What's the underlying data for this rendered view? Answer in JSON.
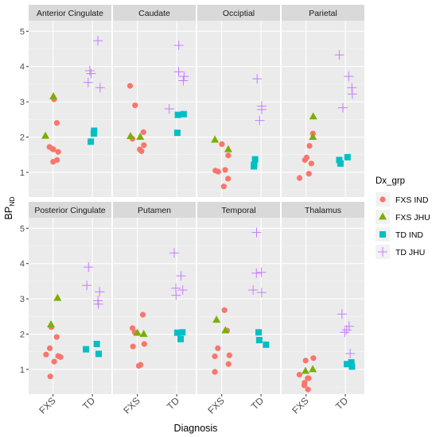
{
  "chart_data": {
    "type": "scatter",
    "xlabel": "Diagnosis",
    "ylabel": "BP",
    "ylabel_sub": "ND",
    "categories": [
      "FXS",
      "TD"
    ],
    "ylim": [
      0.3,
      5.3
    ],
    "yticks": [
      "1",
      "2",
      "3",
      "4",
      "5"
    ],
    "grid": true,
    "legend_title": "Dx_grp",
    "legend_position": "right",
    "series_style": [
      {
        "name": "FXS IND",
        "color": "#F8766D",
        "shape": "circle"
      },
      {
        "name": "FXS JHU",
        "color": "#7CAE00",
        "shape": "triangle"
      },
      {
        "name": "TD IND",
        "color": "#00BFC4",
        "shape": "square"
      },
      {
        "name": "TD JHU",
        "color": "#C77CFF",
        "shape": "plus"
      }
    ],
    "panels": [
      {
        "title": "Anterior Cingulate",
        "series": [
          {
            "name": "FXS IND",
            "x": [
              "FXS",
              "FXS",
              "FXS",
              "FXS",
              "FXS",
              "FXS",
              "FXS",
              "FXS"
            ],
            "values": [
              2.4,
              3.07,
              1.67,
              1.72,
              1.58,
              1.35,
              1.3,
              1.65
            ]
          },
          {
            "name": "FXS JHU",
            "x": [
              "FXS",
              "FXS"
            ],
            "values": [
              3.15,
              2.03
            ]
          },
          {
            "name": "TD IND",
            "x": [
              "TD",
              "TD",
              "TD"
            ],
            "values": [
              2.1,
              2.18,
              1.87
            ]
          },
          {
            "name": "TD JHU",
            "x": [
              "TD",
              "TD",
              "TD",
              "TD",
              "TD"
            ],
            "values": [
              4.73,
              3.88,
              3.8,
              3.55,
              3.4
            ]
          }
        ]
      },
      {
        "title": "Caudate",
        "series": [
          {
            "name": "FXS IND",
            "x": [
              "FXS",
              "FXS",
              "FXS",
              "FXS",
              "FXS",
              "FXS",
              "FXS"
            ],
            "values": [
              3.45,
              2.9,
              2.14,
              1.95,
              1.77,
              1.65,
              1.6
            ]
          },
          {
            "name": "FXS JHU",
            "x": [
              "FXS",
              "FXS"
            ],
            "values": [
              2.02,
              2.0
            ]
          },
          {
            "name": "TD IND",
            "x": [
              "TD",
              "TD",
              "TD"
            ],
            "values": [
              2.65,
              2.63,
              2.12
            ]
          },
          {
            "name": "TD JHU",
            "x": [
              "TD",
              "TD",
              "TD",
              "TD",
              "TD"
            ],
            "values": [
              4.6,
              3.85,
              3.72,
              3.6,
              2.8
            ]
          }
        ]
      },
      {
        "title": "Occiptial",
        "series": [
          {
            "name": "FXS IND",
            "x": [
              "FXS",
              "FXS",
              "FXS",
              "FXS",
              "FXS",
              "FXS",
              "FXS"
            ],
            "values": [
              1.8,
              1.48,
              1.07,
              1.05,
              1.02,
              0.82,
              0.6
            ]
          },
          {
            "name": "FXS JHU",
            "x": [
              "FXS",
              "FXS"
            ],
            "values": [
              1.65,
              1.92
            ]
          },
          {
            "name": "TD IND",
            "x": [
              "TD",
              "TD",
              "TD"
            ],
            "values": [
              1.37,
              1.22,
              1.17
            ]
          },
          {
            "name": "TD JHU",
            "x": [
              "TD",
              "TD",
              "TD",
              "TD"
            ],
            "values": [
              3.65,
              2.88,
              2.78,
              2.47
            ]
          }
        ]
      },
      {
        "title": "Parietal",
        "series": [
          {
            "name": "FXS IND",
            "x": [
              "FXS",
              "FXS",
              "FXS",
              "FXS",
              "FXS",
              "FXS",
              "FXS"
            ],
            "values": [
              2.1,
              1.75,
              1.42,
              1.35,
              1.25,
              0.96,
              0.84
            ]
          },
          {
            "name": "FXS JHU",
            "x": [
              "FXS",
              "FXS"
            ],
            "values": [
              2.58,
              2.0
            ]
          },
          {
            "name": "TD IND",
            "x": [
              "TD",
              "TD",
              "TD"
            ],
            "values": [
              1.43,
              1.35,
              1.25
            ]
          },
          {
            "name": "TD JHU",
            "x": [
              "TD",
              "TD",
              "TD",
              "TD",
              "TD"
            ],
            "values": [
              4.33,
              3.72,
              3.4,
              3.22,
              2.83
            ]
          }
        ]
      },
      {
        "title": "Posterior Cingulate",
        "series": [
          {
            "name": "FXS IND",
            "x": [
              "FXS",
              "FXS",
              "FXS",
              "FXS",
              "FXS",
              "FXS",
              "FXS",
              "FXS"
            ],
            "values": [
              2.2,
              1.92,
              1.6,
              1.42,
              1.38,
              1.35,
              1.22,
              0.8
            ]
          },
          {
            "name": "FXS JHU",
            "x": [
              "FXS",
              "FXS"
            ],
            "values": [
              3.02,
              2.27
            ]
          },
          {
            "name": "TD IND",
            "x": [
              "TD",
              "TD",
              "TD"
            ],
            "values": [
              1.72,
              1.57,
              1.44
            ]
          },
          {
            "name": "TD JHU",
            "x": [
              "TD",
              "TD",
              "TD",
              "TD",
              "TD"
            ],
            "values": [
              3.9,
              3.38,
              3.2,
              2.95,
              2.85
            ]
          }
        ]
      },
      {
        "title": "Putamen",
        "series": [
          {
            "name": "FXS IND",
            "x": [
              "FXS",
              "FXS",
              "FXS",
              "FXS",
              "FXS",
              "FXS",
              "FXS"
            ],
            "values": [
              2.55,
              2.17,
              2.05,
              1.72,
              1.65,
              1.13,
              1.1
            ]
          },
          {
            "name": "FXS JHU",
            "x": [
              "FXS",
              "FXS"
            ],
            "values": [
              2.03,
              2.0
            ]
          },
          {
            "name": "TD IND",
            "x": [
              "TD",
              "TD",
              "TD"
            ],
            "values": [
              2.05,
              2.04,
              1.86
            ]
          },
          {
            "name": "TD JHU",
            "x": [
              "TD",
              "TD",
              "TD",
              "TD",
              "TD"
            ],
            "values": [
              4.3,
              3.65,
              3.3,
              3.25,
              3.1
            ]
          }
        ]
      },
      {
        "title": "Temporal",
        "series": [
          {
            "name": "FXS IND",
            "x": [
              "FXS",
              "FXS",
              "FXS",
              "FXS",
              "FXS",
              "FXS",
              "FXS"
            ],
            "values": [
              2.68,
              2.1,
              1.6,
              1.4,
              1.37,
              1.15,
              0.93
            ]
          },
          {
            "name": "FXS JHU",
            "x": [
              "FXS",
              "FXS"
            ],
            "values": [
              2.4,
              2.1
            ]
          },
          {
            "name": "TD IND",
            "x": [
              "TD",
              "TD",
              "TD"
            ],
            "values": [
              2.05,
              1.83,
              1.7
            ]
          },
          {
            "name": "TD JHU",
            "x": [
              "TD",
              "TD",
              "TD",
              "TD",
              "TD"
            ],
            "values": [
              4.88,
              3.75,
              3.73,
              3.25,
              3.18
            ]
          }
        ]
      },
      {
        "title": "Thalamus",
        "series": [
          {
            "name": "FXS IND",
            "x": [
              "FXS",
              "FXS",
              "FXS",
              "FXS",
              "FXS",
              "FXS",
              "FXS",
              "FXS"
            ],
            "values": [
              1.32,
              1.25,
              0.85,
              0.75,
              0.62,
              0.55,
              0.43,
              0.75
            ]
          },
          {
            "name": "FXS JHU",
            "x": [
              "FXS",
              "FXS"
            ],
            "values": [
              1.0,
              0.95
            ]
          },
          {
            "name": "TD IND",
            "x": [
              "TD",
              "TD",
              "TD"
            ],
            "values": [
              1.2,
              1.15,
              1.08
            ]
          },
          {
            "name": "TD JHU",
            "x": [
              "TD",
              "TD",
              "TD",
              "TD",
              "TD"
            ],
            "values": [
              2.57,
              2.22,
              2.12,
              2.05,
              1.45
            ]
          }
        ]
      }
    ]
  }
}
